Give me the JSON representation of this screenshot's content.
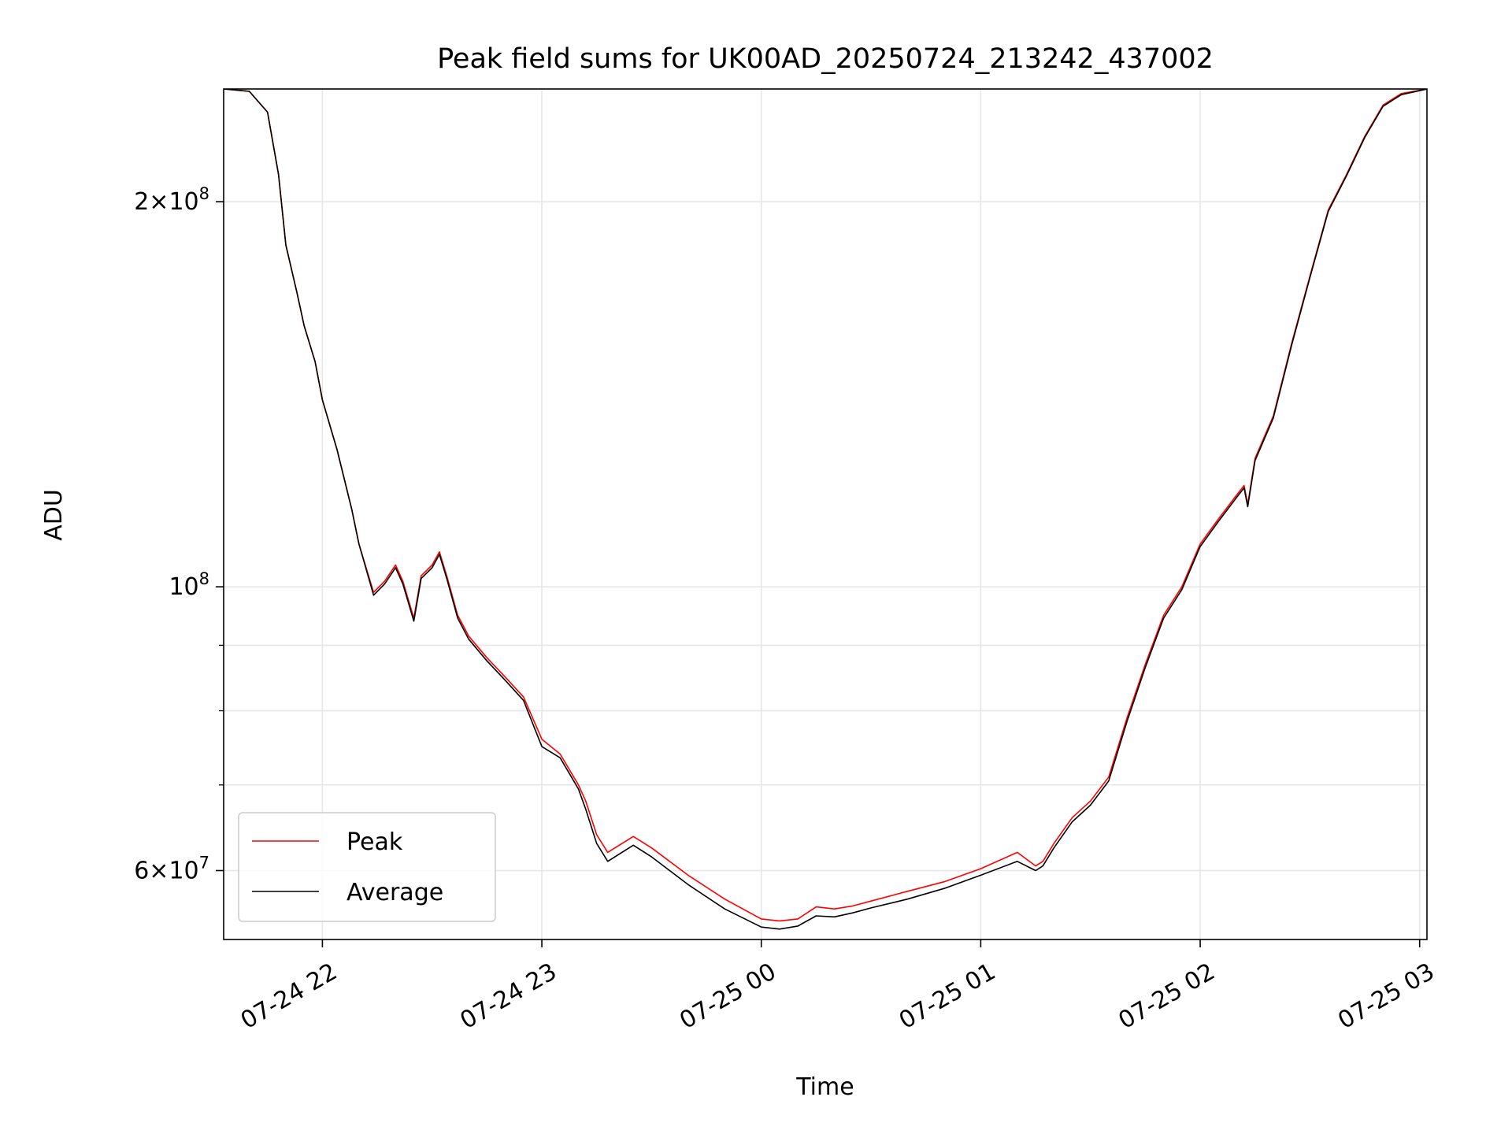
{
  "chart_data": {
    "type": "line",
    "title": "Peak field sums for UK00AD_20250724_213242_437002",
    "xlabel": "Time",
    "ylabel": "ADU",
    "x_format": "date-hour",
    "xlim": [
      "2025-07-24 21:33",
      "2025-07-25 03:02"
    ],
    "ylim": [
      53000000,
      245000000
    ],
    "yscale": "log",
    "grid": true,
    "legend": "lower-left",
    "x_ticks": [
      {
        "t": "2025-07-24 22:00",
        "label": "07-24 22"
      },
      {
        "t": "2025-07-24 23:00",
        "label": "07-24 23"
      },
      {
        "t": "2025-07-25 00:00",
        "label": "07-25 00"
      },
      {
        "t": "2025-07-25 01:00",
        "label": "07-25 01"
      },
      {
        "t": "2025-07-25 02:00",
        "label": "07-25 02"
      },
      {
        "t": "2025-07-25 03:00",
        "label": "07-25 03"
      }
    ],
    "y_major_ticks": [
      {
        "value": 200000000,
        "mantissa": "2",
        "exp": "8"
      },
      {
        "value": 100000000,
        "mantissa": "",
        "exp": "8"
      },
      {
        "value": 60000000,
        "mantissa": "6",
        "exp": "7"
      }
    ],
    "y_minor_ticks": [
      70000000,
      80000000,
      90000000
    ],
    "series": [
      {
        "name": "Peak",
        "color": "#ff0000",
        "x": [
          "2025-07-24 21:33",
          "2025-07-24 21:40",
          "2025-07-24 21:45",
          "2025-07-24 21:48",
          "2025-07-24 21:50",
          "2025-07-24 21:53",
          "2025-07-24 21:55",
          "2025-07-24 21:58",
          "2025-07-24 22:00",
          "2025-07-24 22:04",
          "2025-07-24 22:08",
          "2025-07-24 22:10",
          "2025-07-24 22:14",
          "2025-07-24 22:17",
          "2025-07-24 22:20",
          "2025-07-24 22:22",
          "2025-07-24 22:25",
          "2025-07-24 22:27",
          "2025-07-24 22:30",
          "2025-07-24 22:32",
          "2025-07-24 22:34",
          "2025-07-24 22:37",
          "2025-07-24 22:40",
          "2025-07-24 22:45",
          "2025-07-24 22:50",
          "2025-07-24 22:55",
          "2025-07-24 23:00",
          "2025-07-24 23:05",
          "2025-07-24 23:10",
          "2025-07-24 23:12",
          "2025-07-24 23:15",
          "2025-07-24 23:18",
          "2025-07-24 23:25",
          "2025-07-24 23:30",
          "2025-07-24 23:40",
          "2025-07-24 23:50",
          "2025-07-25 00:00",
          "2025-07-25 00:05",
          "2025-07-25 00:10",
          "2025-07-25 00:15",
          "2025-07-25 00:20",
          "2025-07-25 00:25",
          "2025-07-25 00:30",
          "2025-07-25 00:40",
          "2025-07-25 00:50",
          "2025-07-25 01:00",
          "2025-07-25 01:10",
          "2025-07-25 01:15",
          "2025-07-25 01:17",
          "2025-07-25 01:20",
          "2025-07-25 01:25",
          "2025-07-25 01:30",
          "2025-07-25 01:35",
          "2025-07-25 01:40",
          "2025-07-25 01:45",
          "2025-07-25 01:50",
          "2025-07-25 01:55",
          "2025-07-25 02:00",
          "2025-07-25 02:05",
          "2025-07-25 02:10",
          "2025-07-25 02:12",
          "2025-07-25 02:13",
          "2025-07-25 02:15",
          "2025-07-25 02:20",
          "2025-07-25 02:25",
          "2025-07-25 02:30",
          "2025-07-25 02:35",
          "2025-07-25 02:40",
          "2025-07-25 02:45",
          "2025-07-25 02:50",
          "2025-07-25 02:55",
          "2025-07-25 03:02"
        ],
        "values": [
          245000000,
          244000000,
          235000000,
          210000000,
          185000000,
          170000000,
          160000000,
          150000000,
          140000000,
          128000000,
          115000000,
          108000000,
          99000000,
          101000000,
          104000000,
          101000000,
          94500000,
          102000000,
          104000000,
          106500000,
          102000000,
          95000000,
          91500000,
          88000000,
          85000000,
          82000000,
          76000000,
          74000000,
          70000000,
          68000000,
          64000000,
          62000000,
          63800000,
          62500000,
          59500000,
          57000000,
          55000000,
          54800000,
          55000000,
          56200000,
          56000000,
          56300000,
          56800000,
          57800000,
          58800000,
          60200000,
          62000000,
          60500000,
          61000000,
          63000000,
          66000000,
          68000000,
          71000000,
          79000000,
          87000000,
          95000000,
          100000000,
          108000000,
          113000000,
          118000000,
          120000000,
          116000000,
          126000000,
          136000000,
          155000000,
          175000000,
          197000000,
          210000000,
          225000000,
          238000000,
          243000000,
          245000000
        ]
      },
      {
        "name": "Average",
        "color": "#000000",
        "x": [
          "2025-07-24 21:33",
          "2025-07-24 21:40",
          "2025-07-24 21:45",
          "2025-07-24 21:48",
          "2025-07-24 21:50",
          "2025-07-24 21:53",
          "2025-07-24 21:55",
          "2025-07-24 21:58",
          "2025-07-24 22:00",
          "2025-07-24 22:04",
          "2025-07-24 22:08",
          "2025-07-24 22:10",
          "2025-07-24 22:14",
          "2025-07-24 22:17",
          "2025-07-24 22:20",
          "2025-07-24 22:22",
          "2025-07-24 22:25",
          "2025-07-24 22:27",
          "2025-07-24 22:30",
          "2025-07-24 22:32",
          "2025-07-24 22:34",
          "2025-07-24 22:37",
          "2025-07-24 22:40",
          "2025-07-24 22:45",
          "2025-07-24 22:50",
          "2025-07-24 22:55",
          "2025-07-24 23:00",
          "2025-07-24 23:05",
          "2025-07-24 23:10",
          "2025-07-24 23:12",
          "2025-07-24 23:15",
          "2025-07-24 23:18",
          "2025-07-24 23:25",
          "2025-07-24 23:30",
          "2025-07-24 23:40",
          "2025-07-24 23:50",
          "2025-07-25 00:00",
          "2025-07-25 00:05",
          "2025-07-25 00:10",
          "2025-07-25 00:15",
          "2025-07-25 00:20",
          "2025-07-25 00:25",
          "2025-07-25 00:30",
          "2025-07-25 00:40",
          "2025-07-25 00:50",
          "2025-07-25 01:00",
          "2025-07-25 01:10",
          "2025-07-25 01:15",
          "2025-07-25 01:17",
          "2025-07-25 01:20",
          "2025-07-25 01:25",
          "2025-07-25 01:30",
          "2025-07-25 01:35",
          "2025-07-25 01:40",
          "2025-07-25 01:45",
          "2025-07-25 01:50",
          "2025-07-25 01:55",
          "2025-07-25 02:00",
          "2025-07-25 02:05",
          "2025-07-25 02:10",
          "2025-07-25 02:12",
          "2025-07-25 02:13",
          "2025-07-25 02:15",
          "2025-07-25 02:20",
          "2025-07-25 02:25",
          "2025-07-25 02:30",
          "2025-07-25 02:35",
          "2025-07-25 02:40",
          "2025-07-25 02:45",
          "2025-07-25 02:50",
          "2025-07-25 02:55",
          "2025-07-25 03:02"
        ],
        "values": [
          245000000,
          244000000,
          235000000,
          210000000,
          185000000,
          170000000,
          160000000,
          150000000,
          140000000,
          128000000,
          115000000,
          108000000,
          98500000,
          100500000,
          103500000,
          100500000,
          94000000,
          101500000,
          103500000,
          106000000,
          101500000,
          94500000,
          91000000,
          87500000,
          84500000,
          81500000,
          75000000,
          73500000,
          69500000,
          67000000,
          63000000,
          61000000,
          62800000,
          61500000,
          58500000,
          56000000,
          54200000,
          54000000,
          54300000,
          55300000,
          55200000,
          55600000,
          56100000,
          57000000,
          58100000,
          59500000,
          61000000,
          60000000,
          60500000,
          62500000,
          65500000,
          67500000,
          70500000,
          78500000,
          86500000,
          94500000,
          99500000,
          107500000,
          112500000,
          117500000,
          119500000,
          115500000,
          125500000,
          135500000,
          154500000,
          174500000,
          196500000,
          209500000,
          224500000,
          237500000,
          242500000,
          245000000
        ]
      }
    ]
  }
}
